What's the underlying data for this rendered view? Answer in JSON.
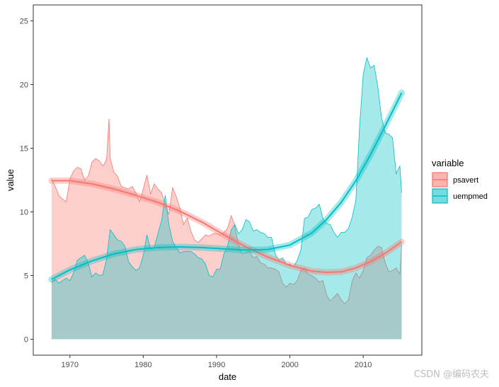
{
  "chart_data": {
    "type": "area",
    "title": "",
    "xlabel": "date",
    "ylabel": "value",
    "xlim": [
      "1965-01-01",
      "2017-12-31"
    ],
    "ylim": [
      -1.25,
      26.25
    ],
    "x_ticks": [
      "1970",
      "1980",
      "1990",
      "2000",
      "2010"
    ],
    "y_ticks": [
      0,
      5,
      10,
      15,
      20,
      25
    ],
    "grid": false,
    "legend": {
      "title": "variable",
      "position": "right"
    },
    "fill_alpha": 0.35,
    "series": [
      {
        "name": "psavert",
        "color": "#F8766D",
        "x": [
          "1967-07-01",
          "1968-01-01",
          "1968-07-01",
          "1969-01-01",
          "1969-07-01",
          "1970-01-01",
          "1970-07-01",
          "1971-01-01",
          "1971-07-01",
          "1972-01-01",
          "1972-07-01",
          "1973-01-01",
          "1973-07-01",
          "1974-01-01",
          "1974-07-01",
          "1975-01-01",
          "1975-05-01",
          "1975-07-01",
          "1976-01-01",
          "1976-07-01",
          "1977-01-01",
          "1977-07-01",
          "1978-01-01",
          "1978-07-01",
          "1979-01-01",
          "1979-07-01",
          "1980-01-01",
          "1980-07-01",
          "1981-01-01",
          "1981-07-01",
          "1982-01-01",
          "1982-07-01",
          "1983-01-01",
          "1983-07-01",
          "1984-01-01",
          "1984-07-01",
          "1985-01-01",
          "1985-07-01",
          "1986-01-01",
          "1986-07-01",
          "1987-01-01",
          "1987-07-01",
          "1988-01-01",
          "1988-07-01",
          "1989-01-01",
          "1989-07-01",
          "1990-01-01",
          "1990-07-01",
          "1991-01-01",
          "1991-07-01",
          "1992-01-01",
          "1992-07-01",
          "1993-01-01",
          "1993-07-01",
          "1994-01-01",
          "1994-07-01",
          "1995-01-01",
          "1995-07-01",
          "1996-01-01",
          "1996-07-01",
          "1997-01-01",
          "1997-07-01",
          "1998-01-01",
          "1998-07-01",
          "1999-01-01",
          "1999-07-01",
          "2000-01-01",
          "2000-07-01",
          "2001-01-01",
          "2001-07-01",
          "2002-01-01",
          "2002-07-01",
          "2003-01-01",
          "2003-07-01",
          "2004-01-01",
          "2004-07-01",
          "2005-01-01",
          "2005-07-01",
          "2006-01-01",
          "2006-07-01",
          "2007-01-01",
          "2007-07-01",
          "2008-01-01",
          "2008-07-01",
          "2009-01-01",
          "2009-07-01",
          "2010-01-01",
          "2010-07-01",
          "2011-01-01",
          "2011-07-01",
          "2012-01-01",
          "2012-07-01",
          "2013-01-01",
          "2013-07-01",
          "2014-01-01",
          "2014-07-01",
          "2015-01-01",
          "2015-04-01"
        ],
        "values": [
          12.6,
          12.0,
          11.3,
          11.0,
          10.8,
          12.6,
          13.2,
          13.5,
          13.4,
          12.5,
          12.8,
          13.9,
          14.2,
          14.0,
          13.6,
          14.1,
          17.3,
          14.2,
          13.1,
          12.8,
          12.0,
          11.9,
          11.8,
          12.0,
          11.5,
          10.8,
          11.8,
          12.9,
          11.4,
          12.2,
          11.8,
          11.5,
          10.6,
          9.8,
          11.9,
          11.2,
          10.3,
          9.0,
          9.5,
          8.5,
          7.8,
          7.6,
          7.9,
          8.2,
          8.1,
          8.3,
          8.3,
          8.2,
          8.4,
          8.7,
          9.7,
          8.9,
          7.4,
          6.7,
          6.8,
          6.9,
          6.4,
          6.5,
          6.0,
          5.9,
          5.6,
          5.6,
          5.5,
          5.3,
          4.4,
          4.1,
          4.4,
          4.3,
          4.6,
          5.4,
          5.6,
          5.1,
          5.0,
          4.8,
          4.5,
          4.6,
          3.5,
          3.0,
          3.3,
          3.6,
          3.1,
          2.8,
          3.1,
          4.6,
          5.2,
          4.8,
          5.4,
          6.4,
          6.6,
          7.0,
          7.3,
          7.2,
          6.0,
          5.3,
          5.4,
          5.6,
          5.1,
          7.4
        ],
        "smooth": {
          "x": [
            "1967-07-01",
            "1970-01-01",
            "1973-01-01",
            "1976-01-01",
            "1979-01-01",
            "1982-01-01",
            "1985-01-01",
            "1988-01-01",
            "1991-01-01",
            "1994-01-01",
            "1997-01-01",
            "2000-01-01",
            "2003-01-01",
            "2005-01-01",
            "2007-01-01",
            "2009-01-01",
            "2011-01-01",
            "2013-01-01",
            "2015-04-01"
          ],
          "values": [
            12.45,
            12.45,
            12.2,
            11.8,
            11.3,
            10.75,
            10.05,
            9.2,
            8.2,
            7.25,
            6.45,
            5.8,
            5.35,
            5.25,
            5.3,
            5.6,
            6.1,
            6.75,
            7.65
          ]
        }
      },
      {
        "name": "uempmed",
        "color": "#00BFC4",
        "x": [
          "1967-07-01",
          "1968-01-01",
          "1968-07-01",
          "1969-01-01",
          "1969-07-01",
          "1970-01-01",
          "1970-07-01",
          "1971-01-01",
          "1971-07-01",
          "1972-01-01",
          "1972-07-01",
          "1973-01-01",
          "1973-07-01",
          "1974-01-01",
          "1974-07-01",
          "1975-01-01",
          "1975-07-01",
          "1976-01-01",
          "1976-07-01",
          "1977-01-01",
          "1977-07-01",
          "1978-01-01",
          "1978-07-01",
          "1979-01-01",
          "1979-07-01",
          "1980-01-01",
          "1980-07-01",
          "1981-01-01",
          "1981-07-01",
          "1982-01-01",
          "1982-07-01",
          "1983-01-01",
          "1983-07-01",
          "1984-01-01",
          "1984-07-01",
          "1985-01-01",
          "1985-07-01",
          "1986-01-01",
          "1986-07-01",
          "1987-01-01",
          "1987-07-01",
          "1988-01-01",
          "1988-07-01",
          "1989-01-01",
          "1989-07-01",
          "1990-01-01",
          "1990-07-01",
          "1991-01-01",
          "1991-07-01",
          "1992-01-01",
          "1992-07-01",
          "1993-01-01",
          "1993-07-01",
          "1994-01-01",
          "1994-07-01",
          "1995-01-01",
          "1995-07-01",
          "1996-01-01",
          "1996-07-01",
          "1997-01-01",
          "1997-07-01",
          "1998-01-01",
          "1998-07-01",
          "1999-01-01",
          "1999-07-01",
          "2000-01-01",
          "2000-07-01",
          "2001-01-01",
          "2001-07-01",
          "2002-01-01",
          "2002-07-01",
          "2003-01-01",
          "2003-07-01",
          "2004-01-01",
          "2004-07-01",
          "2005-01-01",
          "2005-07-01",
          "2006-01-01",
          "2006-07-01",
          "2007-01-01",
          "2007-07-01",
          "2008-01-01",
          "2008-07-01",
          "2009-01-01",
          "2009-07-01",
          "2010-01-01",
          "2010-07-01",
          "2011-01-01",
          "2011-07-01",
          "2012-01-01",
          "2012-07-01",
          "2013-01-01",
          "2013-07-01",
          "2014-01-01",
          "2014-07-01",
          "2015-01-01",
          "2015-04-01"
        ],
        "values": [
          4.5,
          4.7,
          4.4,
          4.6,
          4.8,
          4.6,
          5.2,
          6.2,
          6.4,
          6.6,
          6.0,
          4.9,
          5.2,
          5.0,
          5.1,
          6.3,
          8.6,
          8.2,
          7.8,
          7.7,
          7.3,
          6.1,
          5.7,
          5.4,
          5.6,
          6.6,
          8.2,
          7.1,
          7.2,
          8.3,
          9.3,
          11.3,
          9.0,
          7.7,
          7.2,
          6.8,
          6.9,
          6.9,
          6.9,
          6.7,
          6.4,
          6.3,
          5.9,
          5.0,
          4.9,
          5.5,
          5.5,
          6.7,
          7.3,
          8.6,
          9.0,
          8.3,
          8.6,
          9.4,
          9.2,
          8.5,
          8.6,
          8.4,
          8.3,
          8.0,
          8.0,
          6.7,
          6.2,
          6.4,
          5.9,
          5.9,
          5.7,
          6.2,
          7.0,
          9.5,
          9.6,
          10.2,
          10.3,
          10.6,
          9.5,
          9.1,
          9.0,
          8.4,
          8.0,
          8.4,
          8.4,
          8.7,
          9.6,
          10.9,
          16.6,
          20.8,
          22.1,
          21.3,
          21.5,
          19.8,
          17.4,
          16.2,
          16.1,
          15.8,
          13.0,
          13.6,
          11.5
        ]
      },
      {
        "name": "uempmed",
        "role": "smooth",
        "color": "#00BFC4",
        "smooth": {
          "x": [
            "1967-07-01",
            "1970-01-01",
            "1973-01-01",
            "1976-01-01",
            "1979-01-01",
            "1982-01-01",
            "1985-01-01",
            "1988-01-01",
            "1991-01-01",
            "1994-01-01",
            "1997-01-01",
            "2000-01-01",
            "2003-01-01",
            "2005-01-01",
            "2007-01-01",
            "2009-01-01",
            "2011-01-01",
            "2013-01-01",
            "2015-04-01"
          ],
          "values": [
            4.7,
            5.45,
            6.15,
            6.7,
            7.05,
            7.2,
            7.25,
            7.2,
            7.1,
            7.0,
            7.05,
            7.4,
            8.35,
            9.4,
            10.75,
            12.45,
            14.5,
            16.75,
            19.35
          ]
        }
      }
    ],
    "smooth_color": "#7f7f7f"
  },
  "watermark": "CSDN @编码农夫"
}
